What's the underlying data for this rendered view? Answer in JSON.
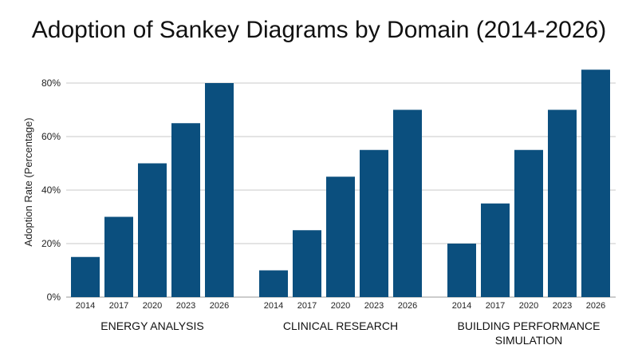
{
  "chart_data": {
    "type": "bar",
    "title": "Adoption of Sankey Diagrams by Domain (2014-2026)",
    "xlabel": "",
    "ylabel": "Adoption Rate (Percentage)",
    "ylim": [
      0,
      0.85
    ],
    "yticks": [
      {
        "value": 0,
        "label": "0%"
      },
      {
        "value": 0.2,
        "label": "20%"
      },
      {
        "value": 0.4,
        "label": "40%"
      },
      {
        "value": 0.6,
        "label": "60%"
      },
      {
        "value": 0.8,
        "label": "80%"
      }
    ],
    "grid": true,
    "bar_color": "#0b4f7e",
    "groups": [
      {
        "label_lines": [
          "ENERGY ANALYSIS"
        ],
        "categories": [
          "2014",
          "2017",
          "2020",
          "2023",
          "2026"
        ],
        "values": [
          0.15,
          0.3,
          0.5,
          0.65,
          0.8
        ]
      },
      {
        "label_lines": [
          "CLINICAL RESEARCH"
        ],
        "categories": [
          "2014",
          "2017",
          "2020",
          "2023",
          "2026"
        ],
        "values": [
          0.1,
          0.25,
          0.45,
          0.55,
          0.7
        ]
      },
      {
        "label_lines": [
          "BUILDING PERFORMANCE",
          "SIMULATION"
        ],
        "categories": [
          "2014",
          "2017",
          "2020",
          "2023",
          "2026"
        ],
        "values": [
          0.2,
          0.35,
          0.55,
          0.7,
          0.85
        ]
      }
    ]
  }
}
